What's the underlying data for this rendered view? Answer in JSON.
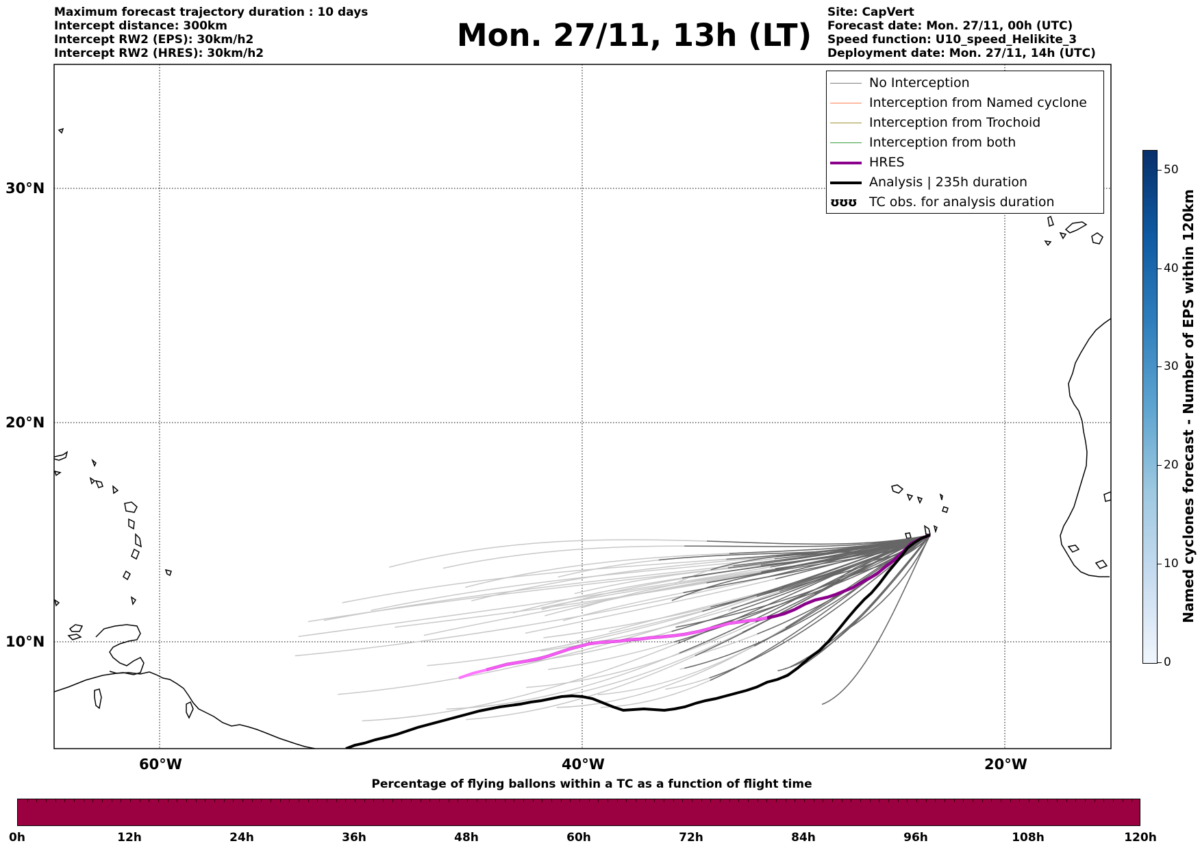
{
  "header": {
    "left_lines": [
      "Maximum forecast trajectory duration : 10 days",
      "Intercept distance: 300km",
      "Intercept RW2 (EPS):  30km/h2",
      "Intercept RW2 (HRES): 30km/h2"
    ],
    "title": "Mon. 27/11, 13h (LT)",
    "right_lines": [
      "Site: CapVert",
      "Forecast date: Mon. 27/11, 00h (UTC)",
      "Speed function: U10_speed_Helikite_3",
      "Deployment date: Mon. 27/11, 14h (UTC)"
    ]
  },
  "map": {
    "lat_labels": [
      "30°N",
      "20°N",
      "10°N"
    ],
    "lon_labels": [
      "60°W",
      "40°W",
      "20°W"
    ]
  },
  "legend": [
    {
      "label": "No Interception",
      "color": "#808080",
      "width": 1.5
    },
    {
      "label": "Interception from Named cyclone",
      "color": "#ff7f50",
      "width": 1.5
    },
    {
      "label": "Interception from Trochoid",
      "color": "#a09030",
      "width": 1.5
    },
    {
      "label": "Interception from both",
      "color": "#3a9e3a",
      "width": 1.5
    },
    {
      "label": "HRES",
      "color": "#8b008b",
      "width": 4
    },
    {
      "label": "Analysis | 235h duration",
      "color": "#000000",
      "width": 4
    },
    {
      "label": "TC obs. for analysis duration",
      "symbol": "ʊʊʊ"
    }
  ],
  "colorbar": {
    "title": "Named cyclones forecast - Number of EPS within 120km",
    "ticks": [
      "0",
      "10",
      "20",
      "30",
      "40",
      "50"
    ],
    "max": 52
  },
  "flight_time_bar": {
    "title": "Percentage of flying ballons within a TC as a function of flight time",
    "color": "#9b0040",
    "ticks": [
      "0h",
      "12h",
      "24h",
      "36h",
      "48h",
      "60h",
      "72h",
      "84h",
      "96h",
      "108h",
      "120h"
    ]
  }
}
